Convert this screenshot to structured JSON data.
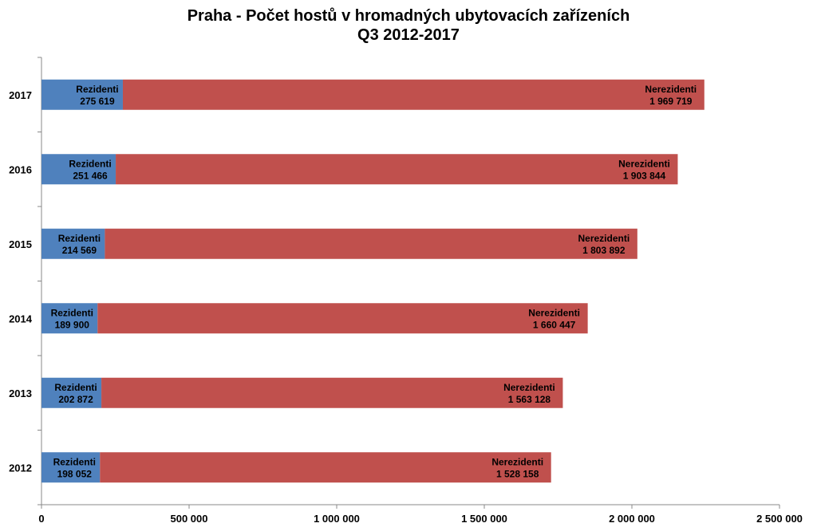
{
  "chart_data": {
    "type": "bar",
    "orientation": "horizontal",
    "stacked": true,
    "title_line1": "Praha - Počet hostů v hromadných ubytovacích zařízeních",
    "title_line2": "Q3 2012-2017",
    "categories": [
      "2017",
      "2016",
      "2015",
      "2014",
      "2013",
      "2012"
    ],
    "series": [
      {
        "name": "Rezidenti",
        "color": "#4F81BD",
        "values": [
          275619,
          251466,
          214569,
          189900,
          202872,
          198052
        ],
        "value_labels": [
          "275 619",
          "251 466",
          "214 569",
          "189 900",
          "202 872",
          "198 052"
        ]
      },
      {
        "name": "Nerezidenti",
        "color": "#C0504D",
        "values": [
          1969719,
          1903844,
          1803892,
          1660447,
          1563128,
          1528158
        ],
        "value_labels": [
          "1 969 719",
          "1 903 844",
          "1 803 892",
          "1 660 447",
          "1 563 128",
          "1 528 158"
        ]
      }
    ],
    "xlim": [
      0,
      2500000
    ],
    "xticks": [
      0,
      500000,
      1000000,
      1500000,
      2000000,
      2500000
    ],
    "xtick_labels": [
      "0",
      "500 000",
      "1 000 000",
      "1 500 000",
      "2 000 000",
      "2 500 000"
    ],
    "grid": false,
    "legend": "none"
  }
}
